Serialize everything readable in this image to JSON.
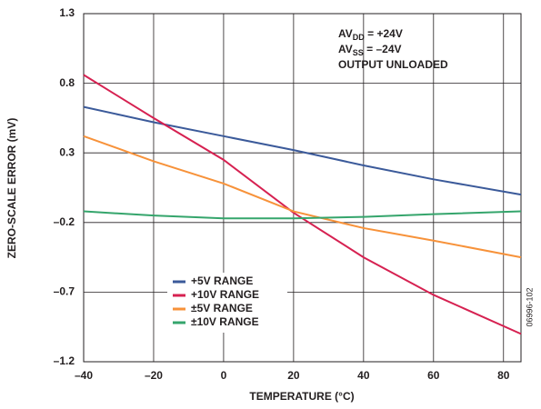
{
  "chart_data": {
    "type": "line",
    "x_label": "TEMPERATURE (°C)",
    "y_label": "ZERO-SCALE ERROR (mV)",
    "x": [
      -40,
      -20,
      0,
      20,
      40,
      60,
      85
    ],
    "series": [
      {
        "name": "+5V RANGE",
        "color": "#3b5a9a",
        "values": [
          0.63,
          0.52,
          0.42,
          0.32,
          0.21,
          0.11,
          0.0
        ]
      },
      {
        "name": "+10V RANGE",
        "color": "#d62151",
        "values": [
          0.86,
          0.55,
          0.25,
          -0.13,
          -0.45,
          -0.72,
          -1.0
        ]
      },
      {
        "name": "±5V RANGE",
        "color": "#f7923a",
        "values": [
          0.42,
          0.24,
          0.08,
          -0.12,
          -0.24,
          -0.33,
          -0.45
        ]
      },
      {
        "name": "±10V RANGE",
        "color": "#35a56c",
        "values": [
          -0.12,
          -0.15,
          -0.17,
          -0.17,
          -0.16,
          -0.14,
          -0.12
        ]
      }
    ],
    "xlim": [
      -40,
      85
    ],
    "ylim": [
      -1.2,
      1.3
    ],
    "xticks": [
      {
        "value": -40,
        "label": "–40"
      },
      {
        "value": -20,
        "label": "–20"
      },
      0,
      20,
      40,
      60,
      80
    ],
    "yticks": [
      {
        "value": -1.2,
        "label": "–1.2"
      },
      {
        "value": -0.7,
        "label": "–0.7"
      },
      {
        "value": -0.2,
        "label": "–0.2"
      },
      0.3,
      0.8,
      1.3
    ],
    "grid": true,
    "legend": "lower left",
    "annotations": [
      {
        "main": "AV",
        "sub": "DD",
        "rest": " = +24V"
      },
      {
        "main": "AV",
        "sub": "SS",
        "rest": " = –24V"
      },
      {
        "main": "OUTPUT UNLOADED"
      }
    ],
    "figure_id": "06996-102"
  }
}
